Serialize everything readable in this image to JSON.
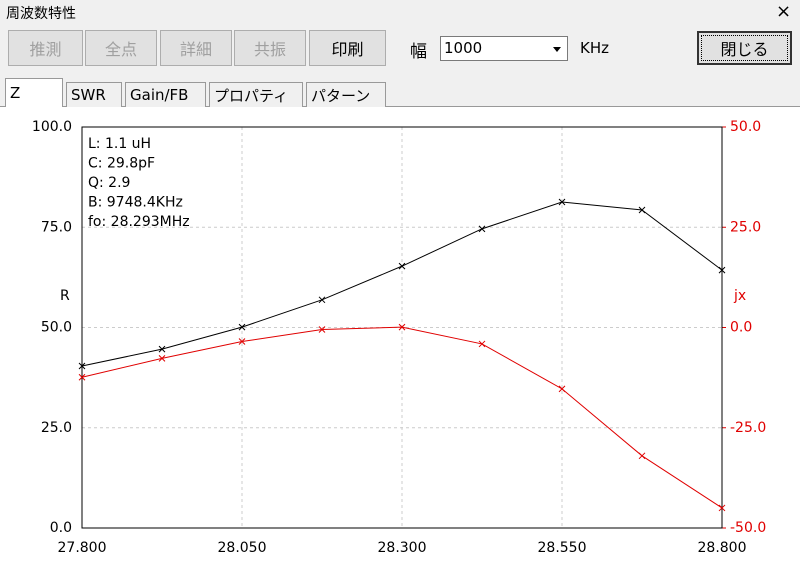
{
  "window": {
    "title": "周波数特性",
    "close": "×"
  },
  "toolbar": {
    "buttons": [
      {
        "label": "推測",
        "enabled": false
      },
      {
        "label": "全点",
        "enabled": false
      },
      {
        "label": "詳細",
        "enabled": false
      },
      {
        "label": "共振",
        "enabled": false
      },
      {
        "label": "印刷",
        "enabled": true
      }
    ],
    "width_label": "幅",
    "width_value": "1000",
    "unit": "KHz",
    "close_button": "閉じる"
  },
  "tabs": [
    "Z",
    "SWR",
    "Gain/FB",
    "プロパティ",
    "パターン"
  ],
  "chart_data": {
    "type": "line",
    "x": [
      27.8,
      27.925,
      28.05,
      28.175,
      28.3,
      28.425,
      28.55,
      28.675,
      28.8
    ],
    "series": [
      {
        "name": "R",
        "color": "#000000",
        "values": [
          40.4,
          44.6,
          50.1,
          56.9,
          65.3,
          74.6,
          81.3,
          79.3,
          64.3
        ]
      },
      {
        "name": "jx",
        "color": "#e00000",
        "axis": "y2",
        "values": [
          -12.4,
          -7.7,
          -3.5,
          -0.5,
          0.1,
          -4.1,
          -15.3,
          -32.0,
          -45.0
        ]
      }
    ],
    "xlim": [
      27.8,
      28.8
    ],
    "xticks": [
      {
        "value": 27.8,
        "label": "27.800"
      },
      {
        "value": 28.05,
        "label": "28.050"
      },
      {
        "value": 28.3,
        "label": "28.300"
      },
      {
        "value": 28.55,
        "label": "28.550"
      },
      {
        "value": 28.8,
        "label": "28.800"
      }
    ],
    "ylim": [
      0,
      100
    ],
    "yticks": [
      {
        "value": 0,
        "label": "0.0"
      },
      {
        "value": 25,
        "label": "25.0"
      },
      {
        "value": 50,
        "label": "50.0"
      },
      {
        "value": 75,
        "label": "75.0"
      },
      {
        "value": 100,
        "label": "100.0"
      }
    ],
    "y2lim": [
      -50,
      50
    ],
    "y2ticks": [
      {
        "value": -50,
        "label": "-50.0"
      },
      {
        "value": -25,
        "label": "-25.0"
      },
      {
        "value": 0,
        "label": "0.0"
      },
      {
        "value": 25,
        "label": "25.0"
      },
      {
        "value": 50,
        "label": "50.0"
      }
    ],
    "grid": true,
    "marker": "x",
    "annotations": [
      "L: 1.1 uH",
      "C: 29.8pF",
      "Q: 2.9",
      "B: 9748.4KHz",
      "fo: 28.293MHz"
    ]
  }
}
